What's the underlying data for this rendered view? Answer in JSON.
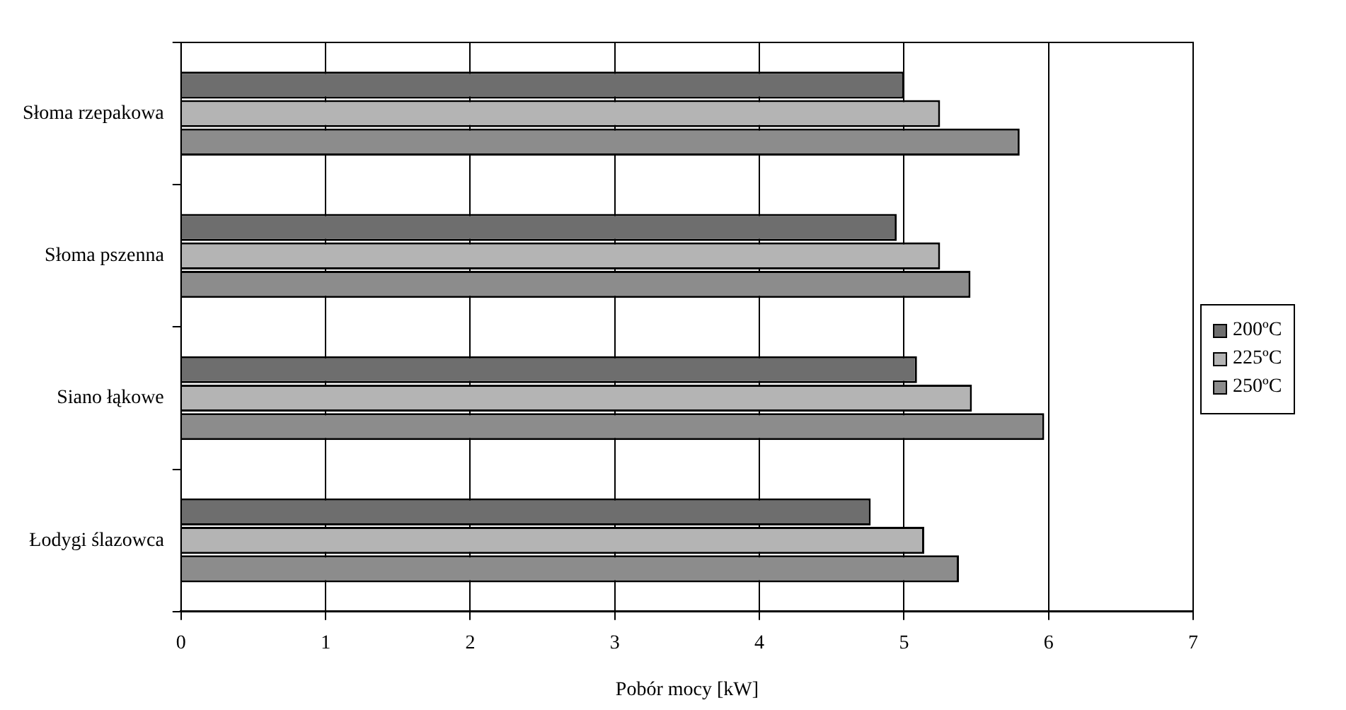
{
  "chart_data": {
    "type": "bar",
    "orientation": "horizontal",
    "xlabel": "Pobór mocy [kW]",
    "categories": [
      "Słoma rzepakowa",
      "Słoma pszenna",
      "Siano łąkowe",
      "Łodygi ślazowca"
    ],
    "series": [
      {
        "name": "200ºC",
        "color": "#6e6e6e",
        "values": [
          5.0,
          4.95,
          5.09,
          4.77
        ]
      },
      {
        "name": "225ºC",
        "color": "#b4b4b4",
        "values": [
          5.25,
          5.25,
          5.47,
          5.14
        ]
      },
      {
        "name": "250ºC",
        "color": "#8c8c8c",
        "values": [
          5.8,
          5.46,
          5.97,
          5.38
        ]
      }
    ],
    "xlim": [
      0,
      7
    ],
    "xticks": [
      0,
      1,
      2,
      3,
      4,
      5,
      6,
      7
    ],
    "grid": "x",
    "legend": "right"
  }
}
